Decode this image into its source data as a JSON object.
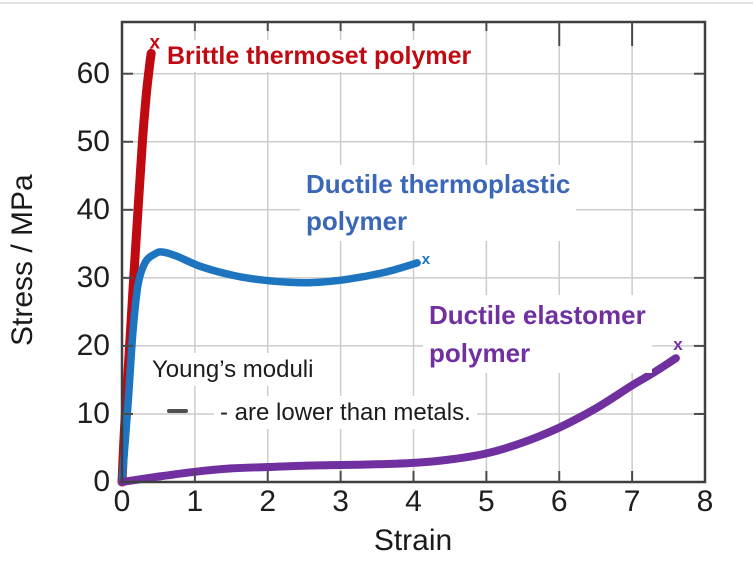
{
  "annotations": {
    "brittle_label": "Brittle thermoset polymer",
    "thermoplastic_label": "Ductile thermoplastic\npolymer",
    "elastomer_label": "Ductile elastomer\npolymer",
    "note_line1": "Young’s moduli",
    "note_line2": "- are lower than metals."
  },
  "colors": {
    "brittle_red": "#c00a12",
    "thermoplastic_curve_blue": "#1d74bf",
    "thermoplastic_label_blue": "#3a67b8",
    "elastomer_purple": "#7030a0",
    "axis": "#3f3f3f",
    "tick": "#4a4a4a",
    "grid": "#cccccc",
    "text": "#1c1c1c"
  },
  "chart_data": {
    "type": "line",
    "title": "",
    "xlabel": "Strain",
    "ylabel": "Stress / MPa",
    "xlim": [
      0,
      8.0
    ],
    "ylim": [
      0,
      67.6
    ],
    "xticks": [
      0,
      1,
      2,
      3,
      4,
      5,
      6,
      7,
      8
    ],
    "yticks": [
      0,
      10,
      20,
      30,
      40,
      50,
      60
    ],
    "grid": true,
    "box": true,
    "ticks_inside_all_sides": true,
    "long_top_ticks_at": [
      6,
      7
    ],
    "series": [
      {
        "name": "Brittle thermoset polymer",
        "color": "#c00a12",
        "width": 9,
        "marker": "x",
        "x": [
          0,
          0.03,
          0.07,
          0.11,
          0.16,
          0.22,
          0.28,
          0.33,
          0.37,
          0.4
        ],
        "y": [
          0,
          7,
          14,
          21,
          30,
          40,
          50,
          56.5,
          60.5,
          63
        ],
        "end_marker": {
          "x": 0.45,
          "y": 64.7
        }
      },
      {
        "name": "Ductile thermoplastic polymer",
        "color": "#1d74bf",
        "width": 7.5,
        "marker": "x",
        "x": [
          0,
          0.08,
          0.15,
          0.22,
          0.32,
          0.45,
          0.55,
          0.75,
          1.1,
          1.6,
          2.1,
          2.6,
          3.1,
          3.6,
          4.05
        ],
        "y": [
          0,
          11,
          22,
          29,
          32.3,
          33.5,
          33.8,
          33.2,
          31.6,
          30.2,
          29.5,
          29.3,
          29.8,
          30.8,
          32.2
        ],
        "end_marker": {
          "x": 4.17,
          "y": 32.8
        }
      },
      {
        "name": "Ductile elastomer polymer",
        "color": "#7030a0",
        "width": 8,
        "marker": "x",
        "x": [
          0,
          0.5,
          1,
          1.5,
          2,
          2.5,
          3,
          3.5,
          4,
          4.5,
          5,
          5.5,
          6,
          6.5,
          7,
          7.3,
          7.6
        ],
        "y": [
          0,
          0.8,
          1.5,
          2.0,
          2.2,
          2.4,
          2.5,
          2.6,
          2.8,
          3.3,
          4.2,
          5.8,
          8.0,
          10.8,
          14.2,
          16.1,
          18.2
        ],
        "end_marker": {
          "x": 7.63,
          "y": 20.3
        }
      }
    ]
  }
}
